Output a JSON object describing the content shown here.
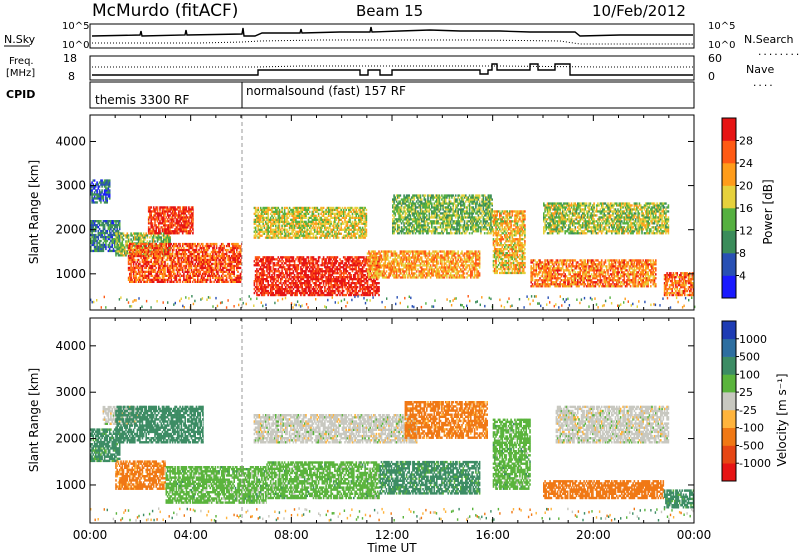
{
  "header": {
    "station": "McMurdo (fitACF)",
    "beam": "Beam 15",
    "date": "10/Feb/2012"
  },
  "noise_panel": {
    "left_label": "N.Sky",
    "right_label": "N.Search",
    "right_style_hint": ".........",
    "left_ticks": [
      "10^5",
      "10^0"
    ],
    "right_ticks": [
      "10^5",
      "10^0"
    ]
  },
  "freq_panel": {
    "left_label_line1": "Freq.",
    "left_label_line2": "[MHz]",
    "left_ticks": [
      "18",
      "8"
    ],
    "right_label": "Nave",
    "right_style_hint": "....",
    "right_ticks": [
      "60",
      "0"
    ]
  },
  "cpid_panel": {
    "label": "CPID",
    "segments": [
      {
        "text": "themis 3300 RF",
        "start_hour": 0
      },
      {
        "text": "normalsound (fast) 157 RF",
        "start_hour": 6.0
      }
    ]
  },
  "colors": {
    "power_scale": [
      "#1a1aff",
      "#2850b4",
      "#3a8c5a",
      "#55b040",
      "#e6d13c",
      "#ff9c1a",
      "#ff5a14",
      "#e61414"
    ],
    "velocity_scale": [
      "#1e3cb4",
      "#2d6ea0",
      "#3c8c64",
      "#5ab43c",
      "#c8c8c0",
      "#ffb43c",
      "#f07814",
      "#e64614",
      "#e61414"
    ]
  },
  "chart_data": [
    {
      "type": "heatmap",
      "panel": "power",
      "xlabel": "",
      "ylabel": "Slant Range [km]",
      "xlim": [
        0,
        24
      ],
      "ylim": [
        180,
        4600
      ],
      "yticks": [
        1000,
        2000,
        3000,
        4000
      ],
      "colorbar_label": "Power [dB]",
      "colorbar_ticks": [
        "4",
        "8",
        "12",
        "16",
        "20",
        "24",
        "28"
      ],
      "colorbar_range": [
        0,
        32
      ],
      "echo_regions": [
        {
          "t0": 0.0,
          "t1": 1.2,
          "r0": 1500,
          "r1": 2200,
          "value": 9
        },
        {
          "t0": 0.0,
          "t1": 0.8,
          "r0": 2600,
          "r1": 3100,
          "value": 7
        },
        {
          "t0": 1.0,
          "t1": 3.2,
          "r0": 1400,
          "r1": 1900,
          "value": 15
        },
        {
          "t0": 2.3,
          "t1": 4.1,
          "r0": 1900,
          "r1": 2500,
          "value": 29
        },
        {
          "t0": 1.5,
          "t1": 6.0,
          "r0": 800,
          "r1": 1700,
          "value": 27
        },
        {
          "t0": 6.5,
          "t1": 11.5,
          "r0": 500,
          "r1": 1400,
          "value": 30
        },
        {
          "t0": 6.5,
          "t1": 11.0,
          "r0": 1800,
          "r1": 2500,
          "value": 18
        },
        {
          "t0": 11.0,
          "t1": 15.5,
          "r0": 900,
          "r1": 1500,
          "value": 22
        },
        {
          "t0": 12.0,
          "t1": 16.0,
          "r0": 1900,
          "r1": 2800,
          "value": 14
        },
        {
          "t0": 16.0,
          "t1": 17.3,
          "r0": 1000,
          "r1": 2400,
          "value": 20
        },
        {
          "t0": 17.5,
          "t1": 22.5,
          "r0": 700,
          "r1": 1300,
          "value": 24
        },
        {
          "t0": 18.0,
          "t1": 23.0,
          "r0": 1900,
          "r1": 2600,
          "value": 16
        },
        {
          "t0": 22.8,
          "t1": 24.0,
          "r0": 500,
          "r1": 1000,
          "value": 25
        }
      ]
    },
    {
      "type": "heatmap",
      "panel": "velocity",
      "xlabel": "Time UT",
      "ylabel": "Slant Range [km]",
      "xlim": [
        0,
        24
      ],
      "ylim": [
        180,
        4600
      ],
      "yticks": [
        1000,
        2000,
        3000,
        4000
      ],
      "xticks": [
        "00:00",
        "04:00",
        "08:00",
        "12:00",
        "16:00",
        "20:00",
        "00:00"
      ],
      "colorbar_label": "Velocity [m s⁻¹]",
      "colorbar_ticks": [
        "1000",
        "500",
        "100",
        "25",
        "-25",
        "-100",
        "-500",
        "-1000"
      ],
      "echo_regions": [
        {
          "t0": 0.0,
          "t1": 1.2,
          "r0": 1500,
          "r1": 2200,
          "value": 150
        },
        {
          "t0": 0.5,
          "t1": 2.0,
          "r0": 2300,
          "r1": 2700,
          "value": 0
        },
        {
          "t0": 1.0,
          "t1": 4.5,
          "r0": 1900,
          "r1": 2700,
          "value": 300
        },
        {
          "t0": 1.0,
          "t1": 3.0,
          "r0": 900,
          "r1": 1500,
          "value": -150
        },
        {
          "t0": 3.0,
          "t1": 7.0,
          "r0": 600,
          "r1": 1400,
          "value": 60
        },
        {
          "t0": 7.0,
          "t1": 11.5,
          "r0": 700,
          "r1": 1500,
          "value": 60
        },
        {
          "t0": 6.5,
          "t1": 13.0,
          "r0": 1900,
          "r1": 2500,
          "value": 0
        },
        {
          "t0": 11.5,
          "t1": 15.5,
          "r0": 800,
          "r1": 1500,
          "value": 150
        },
        {
          "t0": 12.5,
          "t1": 15.8,
          "r0": 2000,
          "r1": 2800,
          "value": -150
        },
        {
          "t0": 16.0,
          "t1": 17.5,
          "r0": 900,
          "r1": 2400,
          "value": 60
        },
        {
          "t0": 18.0,
          "t1": 22.8,
          "r0": 700,
          "r1": 1100,
          "value": -300
        },
        {
          "t0": 18.5,
          "t1": 23.0,
          "r0": 1900,
          "r1": 2700,
          "value": 0
        },
        {
          "t0": 22.8,
          "t1": 24.0,
          "r0": 500,
          "r1": 900,
          "value": 150
        }
      ]
    }
  ]
}
